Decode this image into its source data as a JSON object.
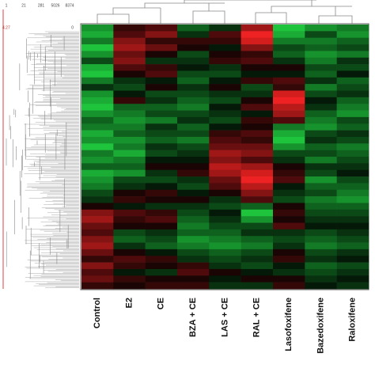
{
  "chart_data": {
    "type": "heatmap",
    "series": [
      {
        "name": "Control",
        "values": [
          -0.6,
          -0.7,
          -0.5,
          -0.8,
          -0.6,
          -0.3,
          -0.7,
          -0.8,
          -0.5,
          -0.2,
          -0.6,
          -0.7,
          -0.8,
          -0.6,
          -0.4,
          -0.5,
          -0.7,
          -0.6,
          -0.8,
          -0.5,
          -0.6,
          -0.4,
          -0.7,
          -0.6,
          -0.5,
          -0.3,
          -0.2,
          0.1,
          0.5,
          0.6,
          0.4,
          0.3,
          0.5,
          0.6,
          0.4,
          0.2,
          0.5,
          0.3,
          0.4,
          0.2
        ]
      },
      {
        "name": "E2",
        "values": [
          0.2,
          0.3,
          0.5,
          0.6,
          0.4,
          0.5,
          0.3,
          0.1,
          -0.2,
          -0.3,
          -0.1,
          0.2,
          -0.4,
          -0.5,
          -0.6,
          -0.5,
          -0.4,
          -0.6,
          -0.5,
          -0.7,
          -0.5,
          -0.4,
          -0.6,
          -0.3,
          -0.2,
          0.1,
          0.2,
          -0.1,
          0.3,
          0.2,
          0.1,
          -0.3,
          -0.4,
          -0.2,
          0.1,
          0.3,
          0.2,
          -0.1,
          0.2,
          0.1
        ]
      },
      {
        "name": "CE",
        "values": [
          0.3,
          0.5,
          0.2,
          0.4,
          0.1,
          -0.2,
          0.2,
          0.3,
          -0.1,
          0.1,
          -0.3,
          -0.2,
          -0.4,
          -0.3,
          -0.5,
          -0.2,
          -0.3,
          -0.4,
          -0.2,
          -0.3,
          -0.1,
          0.1,
          -0.2,
          -0.3,
          -0.1,
          0.2,
          0.1,
          -0.2,
          0.2,
          0.3,
          0.1,
          -0.2,
          -0.3,
          -0.4,
          -0.1,
          0.2,
          0.1,
          -0.2,
          0.1,
          0.2
        ]
      },
      {
        "name": "BZA + CE",
        "values": [
          -0.4,
          -0.2,
          0.2,
          0.1,
          -0.3,
          -0.2,
          -0.1,
          -0.3,
          -0.4,
          -0.2,
          -0.3,
          -0.4,
          -0.5,
          -0.3,
          -0.2,
          -0.4,
          -0.3,
          -0.5,
          -0.3,
          -0.2,
          -0.1,
          0.1,
          0.2,
          -0.2,
          -0.3,
          -0.1,
          0.1,
          -0.2,
          -0.3,
          -0.4,
          -0.5,
          -0.4,
          -0.6,
          -0.5,
          -0.3,
          -0.2,
          0.2,
          0.3,
          0.1,
          0.2
        ]
      },
      {
        "name": "LAS + CE",
        "values": [
          -0.2,
          0.3,
          0.2,
          -0.1,
          0.1,
          0.2,
          -0.2,
          -0.3,
          -0.1,
          0.1,
          -0.2,
          -0.3,
          -0.1,
          -0.2,
          -0.3,
          -0.1,
          0.2,
          0.3,
          0.4,
          0.6,
          0.5,
          0.7,
          0.6,
          0.4,
          0.3,
          0.1,
          -0.2,
          -0.3,
          -0.1,
          -0.2,
          -0.3,
          -0.4,
          -0.5,
          -0.6,
          -0.4,
          -0.3,
          -0.2,
          0.1,
          -0.1,
          -0.2
        ]
      },
      {
        "name": "RAL + CE",
        "values": [
          0.6,
          0.9,
          0.8,
          0.5,
          0.2,
          0.3,
          0.1,
          -0.1,
          0.2,
          -0.3,
          -0.2,
          0.1,
          0.3,
          -0.1,
          0.2,
          0.1,
          0.3,
          0.2,
          0.4,
          0.5,
          0.3,
          0.6,
          0.8,
          0.9,
          0.7,
          0.5,
          0.3,
          -0.4,
          -0.8,
          -0.6,
          -0.3,
          -0.2,
          -0.4,
          -0.5,
          -0.3,
          -0.2,
          -0.3,
          -0.1,
          0.1,
          -0.2
        ]
      },
      {
        "name": "Lasofoxifene",
        "values": [
          -0.8,
          -0.7,
          -0.5,
          -0.3,
          -0.4,
          -0.2,
          0.1,
          -0.1,
          0.3,
          0.2,
          0.8,
          0.9,
          0.7,
          0.6,
          0.3,
          -0.5,
          -0.7,
          -0.8,
          -0.6,
          -0.3,
          -0.2,
          0.1,
          0.2,
          0.3,
          -0.1,
          -0.2,
          -0.3,
          0.1,
          0.2,
          0.1,
          0.3,
          -0.2,
          -0.3,
          -0.2,
          0.1,
          0.2,
          -0.1,
          -0.2,
          0.1,
          0.2
        ]
      },
      {
        "name": "Bazedoxifene",
        "values": [
          -0.6,
          -0.3,
          -0.5,
          -0.4,
          -0.6,
          -0.5,
          -0.3,
          -0.4,
          -0.2,
          -0.5,
          -0.3,
          -0.1,
          -0.2,
          -0.4,
          -0.5,
          -0.6,
          -0.3,
          -0.2,
          -0.4,
          -0.3,
          -0.5,
          -0.2,
          -0.3,
          -0.6,
          -0.4,
          -0.3,
          -0.5,
          -0.4,
          -0.3,
          -0.2,
          -0.1,
          -0.3,
          -0.4,
          -0.5,
          -0.3,
          -0.2,
          -0.4,
          -0.3,
          -0.2,
          -0.1
        ]
      },
      {
        "name": "Raloxifene",
        "values": [
          -0.5,
          -0.6,
          -0.4,
          -0.3,
          -0.5,
          -0.2,
          -0.3,
          -0.1,
          -0.4,
          -0.3,
          -0.2,
          -0.4,
          -0.5,
          -0.6,
          -0.3,
          -0.4,
          -0.2,
          -0.3,
          -0.5,
          -0.4,
          -0.3,
          -0.2,
          -0.1,
          -0.3,
          -0.4,
          -0.5,
          -0.6,
          -0.4,
          -0.3,
          -0.2,
          -0.1,
          -0.2,
          -0.3,
          -0.4,
          -0.2,
          -0.1,
          -0.3,
          -0.2,
          -0.1,
          -0.2
        ]
      }
    ],
    "color_high": "#ee2222",
    "color_low": "#22dd44",
    "color_mid": "#000000",
    "row_dendrogram_ticks": [
      1,
      21,
      281,
      5026,
      8374
    ],
    "row_dendrogram_min": 0,
    "row_dendrogram_max": 4.27
  }
}
